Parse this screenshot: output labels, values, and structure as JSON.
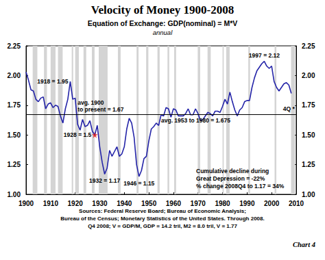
{
  "chart_data": {
    "type": "line",
    "title": "Velocity of Money 1900-2008",
    "subtitle": "Equation of Exchange: GDP(nominal) = M*V",
    "subtitle_note": "annual",
    "xlim": [
      1900,
      2010
    ],
    "xticks": [
      1900,
      1910,
      1920,
      1930,
      1940,
      1950,
      1960,
      1970,
      1980,
      1990,
      2000,
      2010
    ],
    "ylim": [
      1.0,
      2.25
    ],
    "yticks": [
      {
        "value": 1.0,
        "label": "1.00"
      },
      {
        "value": 1.25,
        "label": "1.25"
      },
      {
        "value": 1.5,
        "label": "1.50"
      },
      {
        "value": 1.75,
        "label": "1.75"
      },
      {
        "value": 2.0,
        "label": "2.00"
      },
      {
        "value": 2.25,
        "label": "2.25"
      }
    ],
    "y2lim": [
      1.0,
      2.25
    ],
    "y2ticks": [
      {
        "value": 1.0,
        "label": "1.00"
      },
      {
        "value": 1.25,
        "label": "1.25"
      },
      {
        "value": 1.5,
        "label": "1.50"
      },
      {
        "value": 1.75,
        "label": "1.75"
      },
      {
        "value": 2.0,
        "label": "2.00"
      },
      {
        "value": 2.25,
        "label": "2.25"
      }
    ],
    "grid": false,
    "series": [
      {
        "color": "#2424a8",
        "line_style": "solid",
        "x": [
          1900,
          1901,
          1902,
          1903,
          1904,
          1905,
          1906,
          1907,
          1908,
          1909,
          1910,
          1911,
          1912,
          1913,
          1914,
          1915,
          1916,
          1917,
          1918,
          1919,
          1920,
          1921,
          1922,
          1923,
          1924,
          1925,
          1926,
          1927,
          1928,
          1929,
          1930,
          1931,
          1932,
          1933,
          1934,
          1935,
          1936,
          1937,
          1938,
          1939,
          1940,
          1941,
          1942,
          1943,
          1944,
          1945,
          1946,
          1947,
          1948,
          1949,
          1950,
          1951,
          1952,
          1953,
          1954,
          1955,
          1956,
          1957,
          1958,
          1959,
          1960,
          1961,
          1962,
          1963,
          1964,
          1965,
          1966,
          1967,
          1968,
          1969,
          1970,
          1971,
          1972,
          1973,
          1974,
          1975,
          1976,
          1977,
          1978,
          1979,
          1980,
          1981,
          1982,
          1983,
          1984,
          1985,
          1986,
          1987,
          1988,
          1989,
          1990,
          1991,
          1992,
          1993,
          1994,
          1995,
          1996,
          1997,
          1998,
          1999,
          2000,
          2001,
          2002,
          2003,
          2004,
          2005,
          2006,
          2007,
          2008
        ],
        "values": [
          2.03,
          1.96,
          1.88,
          1.87,
          1.8,
          1.78,
          1.81,
          1.82,
          1.72,
          1.76,
          1.77,
          1.73,
          1.75,
          1.74,
          1.66,
          1.6,
          1.72,
          1.8,
          1.95,
          1.8,
          1.81,
          1.59,
          1.54,
          1.63,
          1.57,
          1.58,
          1.62,
          1.53,
          1.5,
          1.58,
          1.4,
          1.27,
          1.17,
          1.22,
          1.37,
          1.32,
          1.36,
          1.4,
          1.32,
          1.34,
          1.4,
          1.55,
          1.64,
          1.6,
          1.48,
          1.25,
          1.15,
          1.2,
          1.3,
          1.32,
          1.45,
          1.55,
          1.57,
          1.6,
          1.58,
          1.67,
          1.66,
          1.73,
          1.72,
          1.65,
          1.72,
          1.71,
          1.66,
          1.66,
          1.66,
          1.68,
          1.72,
          1.67,
          1.67,
          1.72,
          1.68,
          1.62,
          1.63,
          1.66,
          1.69,
          1.68,
          1.66,
          1.7,
          1.7,
          1.69,
          1.74,
          1.8,
          1.76,
          1.86,
          1.78,
          1.71,
          1.66,
          1.71,
          1.73,
          1.78,
          1.79,
          1.79,
          1.9,
          1.98,
          2.04,
          2.07,
          2.1,
          2.12,
          2.08,
          2.06,
          2.08,
          1.95,
          1.9,
          1.87,
          1.9,
          1.93,
          1.94,
          1.92,
          1.85
        ]
      },
      {
        "type": "scatter",
        "marker": "star",
        "color": "#e01010",
        "x": [
          1928
        ],
        "values": [
          1.5
        ]
      }
    ],
    "recessions": [
      [
        1902.7,
        1904.6
      ],
      [
        1907.3,
        1908.5
      ],
      [
        1910.0,
        1912.0
      ],
      [
        1913.0,
        1914.9
      ],
      [
        1918.6,
        1919.2
      ],
      [
        1920.0,
        1921.5
      ],
      [
        1923.4,
        1924.5
      ],
      [
        1926.8,
        1927.9
      ],
      [
        1929.6,
        1933.2
      ],
      [
        1937.4,
        1938.5
      ],
      [
        1945.0,
        1945.8
      ],
      [
        1948.9,
        1949.8
      ],
      [
        1953.5,
        1954.4
      ],
      [
        1957.6,
        1958.3
      ],
      [
        1960.3,
        1961.1
      ],
      [
        1969.9,
        1970.9
      ],
      [
        1973.9,
        1975.2
      ],
      [
        1980.0,
        1980.5
      ],
      [
        1981.5,
        1982.9
      ],
      [
        1990.5,
        1991.2
      ],
      [
        2001.2,
        2001.9
      ],
      [
        2007.9,
        2009.5
      ]
    ],
    "reference_lines": [
      {
        "value": 1.67,
        "x": [
          1900,
          2010
        ]
      },
      {
        "value": 1.675,
        "x": [
          1953,
          1980
        ]
      }
    ],
    "annotations": [
      {
        "text": "1918 = 1.95",
        "x": 1918,
        "y": 1.95
      },
      {
        "text": "1928 = 1.5",
        "x": 1928,
        "y": 1.5
      },
      {
        "text": "1932 = 1.17",
        "x": 1932,
        "y": 1.17
      },
      {
        "text": "1946 = 1.15",
        "x": 1946,
        "y": 1.15
      },
      {
        "text": "1997 = 2.12",
        "x": 1997,
        "y": 2.12
      },
      {
        "text": "avg. 1900\nto present = 1.67",
        "x": 1921,
        "y": 1.67
      },
      {
        "text": "avg. 1953 to 1980 = 1.675",
        "x": 1955,
        "y": 1.675
      },
      {
        "text": "4Q *",
        "x": 2007,
        "y": 1.77
      }
    ],
    "note": [
      "Cumulative decline during",
      "Great Depression = -22%",
      "% change 2008Q4 to 1.17 = 34%"
    ],
    "sources": [
      "Sources: Federal Reserve Board; Bureau of Economic Analysis;",
      "Bureau of the Census; Monetary Statistics of the United States. Through 2008.",
      "Q4 2008; V = GDP/M, GDP = 14.2 tril, M2 = 8.0 tril, V = 1.77"
    ],
    "chart_label": "Chart 4"
  }
}
